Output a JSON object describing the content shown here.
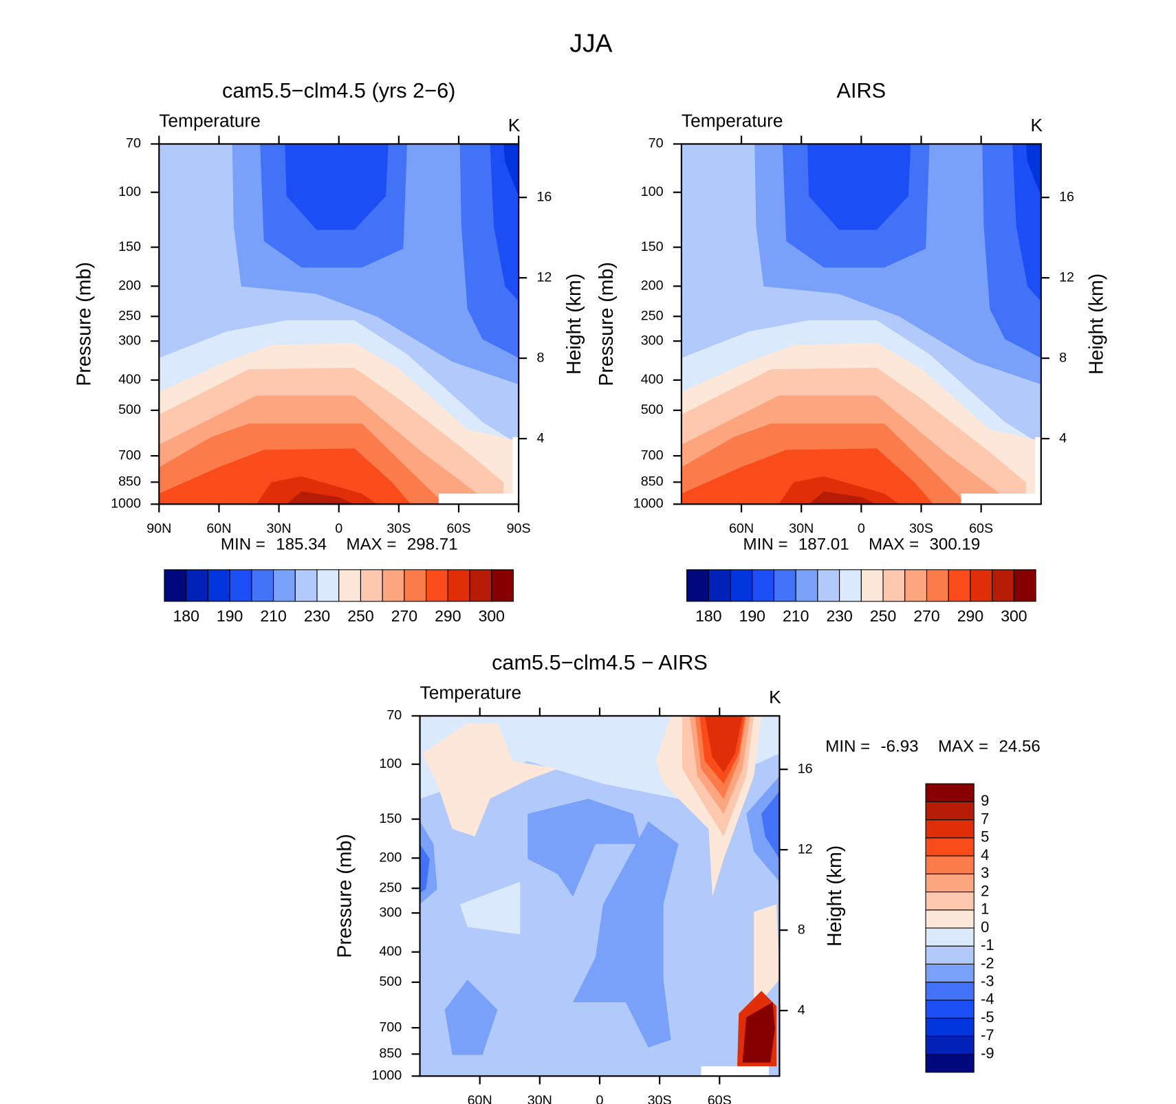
{
  "title": "JJA",
  "chart_data": [
    {
      "type": "contour",
      "title": "cam5.5−clm4.5 (yrs 2−6)",
      "subtitle": "Temperature",
      "units": "K",
      "ylabel": "Pressure (mb)",
      "y2label": "Height (km)",
      "ylim": [
        1000,
        70
      ],
      "yscale": "log",
      "yticks": [
        70,
        100,
        150,
        200,
        250,
        300,
        400,
        500,
        700,
        850,
        1000
      ],
      "y2lim": [
        0.74,
        18.66
      ],
      "y2ticks": [
        4,
        8,
        12,
        16
      ],
      "xlim": [
        90,
        -90
      ],
      "xticks": [
        {
          "value": 90,
          "label": "90N"
        },
        {
          "value": 60,
          "label": "60N"
        },
        {
          "value": 30,
          "label": "30N"
        },
        0,
        {
          "value": -30,
          "label": "30S"
        },
        {
          "value": -60,
          "label": "60S"
        },
        {
          "value": -90,
          "label": "90S"
        }
      ],
      "stats": [
        {
          "label": "MIN =",
          "value": 185.34
        },
        {
          "label": "MAX =",
          "value": 298.71
        }
      ],
      "colorbar": {
        "orientation": "horizontal",
        "colors": [
          "#00087e",
          "#0022b8",
          "#0035dd",
          "#1b4ff5",
          "#4272f8",
          "#7aa1fa",
          "#b1c9fb",
          "#dbe9fc",
          "#fde7d8",
          "#fdc8ae",
          "#fca57f",
          "#fc7b4b",
          "#fa4b1b",
          "#df2e08",
          "#b51b05",
          "#870000"
        ],
        "labels": [
          180,
          190,
          210,
          230,
          250,
          270,
          290,
          300
        ]
      }
    },
    {
      "type": "contour",
      "title": "AIRS",
      "subtitle": "Temperature",
      "units": "K",
      "ylabel": "Pressure (mb)",
      "y2label": "Height (km)",
      "ylim": [
        1000,
        70
      ],
      "yscale": "log",
      "yticks": [
        70,
        100,
        150,
        200,
        250,
        300,
        400,
        500,
        700,
        850,
        1000
      ],
      "y2lim": [
        0.74,
        18.66
      ],
      "y2ticks": [
        4,
        8,
        12,
        16
      ],
      "xlim": [
        90,
        -90
      ],
      "xticks": [
        {
          "value": 60,
          "label": "60N"
        },
        {
          "value": 30,
          "label": "30N"
        },
        0,
        {
          "value": -30,
          "label": "30S"
        },
        {
          "value": -60,
          "label": "60S"
        }
      ],
      "stats": [
        {
          "label": "MIN =",
          "value": 187.01
        },
        {
          "label": "MAX =",
          "value": 300.19
        }
      ],
      "colorbar": {
        "orientation": "horizontal",
        "colors": [
          "#00087e",
          "#0022b8",
          "#0035dd",
          "#1b4ff5",
          "#4272f8",
          "#7aa1fa",
          "#b1c9fb",
          "#dbe9fc",
          "#fde7d8",
          "#fdc8ae",
          "#fca57f",
          "#fc7b4b",
          "#fa4b1b",
          "#df2e08",
          "#b51b05",
          "#870000"
        ],
        "labels": [
          180,
          190,
          210,
          230,
          250,
          270,
          290,
          300
        ]
      }
    },
    {
      "type": "contour",
      "title": "cam5.5−clm4.5 − AIRS",
      "subtitle": "Temperature",
      "units": "K",
      "ylabel": "Pressure (mb)",
      "y2label": "Height (km)",
      "ylim": [
        1000,
        70
      ],
      "yscale": "log",
      "yticks": [
        70,
        100,
        150,
        200,
        250,
        300,
        400,
        500,
        700,
        850,
        1000
      ],
      "y2lim": [
        0.74,
        18.66
      ],
      "y2ticks": [
        4,
        8,
        12,
        16
      ],
      "xlim": [
        90,
        -90
      ],
      "xticks": [
        {
          "value": 60,
          "label": "60N"
        },
        {
          "value": 30,
          "label": "30N"
        },
        0,
        {
          "value": -30,
          "label": "30S"
        },
        {
          "value": -60,
          "label": "60S"
        }
      ],
      "stats": [
        {
          "label": "MIN =",
          "value": -6.93
        },
        {
          "label": "MAX =",
          "value": 24.56
        }
      ],
      "colorbar": {
        "orientation": "vertical",
        "colors": [
          "#00087e",
          "#0022b8",
          "#0035dd",
          "#1b4ff5",
          "#4272f8",
          "#7aa1fa",
          "#b1c9fb",
          "#dbe9fc",
          "#fde7d8",
          "#fdc8ae",
          "#fca57f",
          "#fc7b4b",
          "#fa4b1b",
          "#df2e08",
          "#b51b05",
          "#870000"
        ],
        "labels": [
          9,
          7,
          5,
          4,
          3,
          2,
          1,
          0,
          -1,
          -2,
          -3,
          -4,
          -5,
          -7,
          -9
        ]
      }
    }
  ]
}
